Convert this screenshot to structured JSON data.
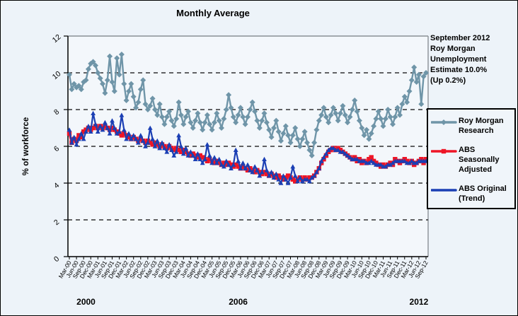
{
  "figure": {
    "background_color": "#edf3f9",
    "plot_background_color": "#f3f7fb",
    "border_color": "#000000"
  },
  "chart_data": {
    "type": "line",
    "title": "Monthly Average",
    "xlabel": "",
    "ylabel": "% of workforce",
    "ylim": [
      0,
      12
    ],
    "ytick_values": [
      0,
      2,
      4,
      6,
      8,
      10,
      12
    ],
    "grid": "horizontal dashed black lines at 2, 4, 6, 8, 10",
    "legend_position": "right",
    "x_frequency": "monthly",
    "x_range": "Mar-2000 to Sep-2012",
    "x_tick_labels": [
      "Mar-00",
      "Jun-00",
      "Sep-00",
      "Dec-00",
      "Mar-01",
      "Jun-01",
      "Sep-01",
      "Dec-01",
      "Mar-02",
      "Jun-02",
      "Sep-02",
      "Dec-02",
      "Mar-03",
      "Jun-03",
      "Sep-03",
      "Dec-03",
      "Mar-04",
      "Jun-04",
      "Sep-04",
      "Dec-04",
      "Mar-05",
      "Jun-05",
      "Sep-05",
      "Dec-05",
      "Mar-06",
      "Jun-06",
      "Sep-06",
      "Dec-06",
      "Mar-07",
      "Jun-07",
      "Sep-07",
      "Dec-07",
      "Mar-08",
      "Jun-08",
      "Sep-08",
      "Dec-08",
      "Mar-09",
      "Jun-09",
      "Sep-09",
      "Dec-09",
      "Mar-10",
      "Jun-10",
      "Sep-10",
      "Dec-10",
      "Mar-11",
      "Jun-11",
      "Sep-11",
      "Dec-11",
      "Mar-12",
      "Jun-12",
      "Sep-12"
    ],
    "year_labels": [
      {
        "label": "2000",
        "month_index": 7
      },
      {
        "label": "2006",
        "month_index": 71
      },
      {
        "label": "2012",
        "month_index": 147
      }
    ],
    "series": [
      {
        "name": "Roy Morgan Research",
        "color": "#6f95a8",
        "marker": "diamond",
        "values": [
          9.9,
          9.1,
          9.4,
          9.2,
          9.3,
          9.1,
          9.5,
          9.6,
          10.2,
          10.5,
          10.6,
          10.4,
          10.0,
          9.7,
          9.4,
          8.9,
          9.6,
          10.9,
          9.5,
          9.0,
          10.8,
          9.9,
          11.0,
          9.4,
          8.5,
          9.0,
          9.4,
          8.7,
          8.1,
          8.4,
          9.1,
          9.6,
          8.3,
          8.0,
          8.2,
          8.6,
          8.0,
          7.7,
          8.3,
          7.6,
          7.2,
          7.6,
          7.9,
          7.4,
          7.1,
          7.5,
          8.4,
          7.7,
          7.2,
          7.6,
          7.9,
          7.3,
          7.0,
          7.4,
          7.8,
          7.3,
          6.9,
          7.3,
          7.7,
          7.2,
          6.9,
          7.3,
          7.8,
          7.4,
          7.0,
          7.5,
          8.0,
          8.8,
          8.1,
          7.6,
          7.3,
          7.7,
          8.1,
          7.6,
          7.2,
          7.6,
          8.0,
          8.4,
          7.9,
          7.4,
          7.0,
          7.4,
          7.8,
          7.3,
          6.9,
          6.5,
          7.0,
          7.4,
          6.8,
          6.3,
          6.7,
          7.1,
          6.6,
          6.2,
          6.6,
          7.0,
          6.4,
          6.0,
          6.4,
          6.8,
          6.2,
          5.8,
          5.5,
          6.2,
          6.9,
          7.4,
          7.7,
          8.1,
          7.6,
          7.3,
          7.7,
          8.1,
          7.8,
          7.4,
          7.8,
          8.2,
          7.7,
          7.3,
          7.6,
          8.0,
          8.5,
          7.9,
          7.4,
          7.0,
          6.6,
          6.9,
          6.4,
          6.7,
          7.1,
          7.5,
          7.9,
          7.5,
          7.1,
          7.5,
          8.0,
          7.6,
          7.2,
          7.6,
          8.1,
          7.7,
          8.3,
          8.7,
          8.4,
          9.0,
          9.6,
          10.3,
          9.5,
          9.9,
          8.3,
          9.8,
          10.0
        ]
      },
      {
        "name": "ABS Seasonally Adjusted",
        "color": "#ee1526",
        "marker": "square",
        "values": [
          6.7,
          6.2,
          6.4,
          6.3,
          6.6,
          6.5,
          6.8,
          6.9,
          7.0,
          6.9,
          7.0,
          7.1,
          7.0,
          7.1,
          7.0,
          7.1,
          7.0,
          6.9,
          7.0,
          6.9,
          6.8,
          6.7,
          6.6,
          6.7,
          6.6,
          6.5,
          6.4,
          6.5,
          6.4,
          6.3,
          6.4,
          6.3,
          6.2,
          6.3,
          6.2,
          6.1,
          6.2,
          6.1,
          6.0,
          6.1,
          6.0,
          5.9,
          6.0,
          5.9,
          5.8,
          5.9,
          5.8,
          5.7,
          5.8,
          5.7,
          5.6,
          5.5,
          5.6,
          5.5,
          5.4,
          5.5,
          5.4,
          5.3,
          5.2,
          5.3,
          5.2,
          5.1,
          5.2,
          5.1,
          5.0,
          5.1,
          5.0,
          5.1,
          5.0,
          4.9,
          5.0,
          4.9,
          4.8,
          4.9,
          4.8,
          4.7,
          4.8,
          4.7,
          4.6,
          4.7,
          4.6,
          4.5,
          4.6,
          4.5,
          4.4,
          4.5,
          4.4,
          4.3,
          4.4,
          4.3,
          4.2,
          4.3,
          4.4,
          4.3,
          4.2,
          4.1,
          4.2,
          4.3,
          4.2,
          4.3,
          4.2,
          4.3,
          4.3,
          4.4,
          4.6,
          4.8,
          5.1,
          5.3,
          5.5,
          5.7,
          5.8,
          5.9,
          5.8,
          5.9,
          5.8,
          5.7,
          5.6,
          5.5,
          5.4,
          5.3,
          5.4,
          5.2,
          5.3,
          5.1,
          5.2,
          5.1,
          5.3,
          5.4,
          5.2,
          5.1,
          5.0,
          4.9,
          5.0,
          4.9,
          5.0,
          5.1,
          5.0,
          5.3,
          5.2,
          5.1,
          5.2,
          5.3,
          5.2,
          5.1,
          5.2,
          5.0,
          5.1,
          5.2,
          5.3,
          5.1,
          5.3
        ]
      },
      {
        "name": "ABS Original (Trend)",
        "color": "#1b3fb4",
        "marker": "triangle",
        "values": [
          6.9,
          6.2,
          6.5,
          6.1,
          6.4,
          6.7,
          6.4,
          6.8,
          7.1,
          6.8,
          7.8,
          7.2,
          6.8,
          7.1,
          6.9,
          7.3,
          7.0,
          6.7,
          7.4,
          7.0,
          6.7,
          6.8,
          7.7,
          6.9,
          6.4,
          6.7,
          6.4,
          6.6,
          6.4,
          6.2,
          6.6,
          6.3,
          6.0,
          6.2,
          7.0,
          6.4,
          6.0,
          6.3,
          5.9,
          6.2,
          5.9,
          5.7,
          6.1,
          5.8,
          5.5,
          5.7,
          6.6,
          6.0,
          5.6,
          5.9,
          5.5,
          5.7,
          5.5,
          5.3,
          5.6,
          5.3,
          5.1,
          5.3,
          6.1,
          5.5,
          5.1,
          5.4,
          5.1,
          5.3,
          5.0,
          4.9,
          5.2,
          5.0,
          4.8,
          5.0,
          5.8,
          5.2,
          4.8,
          5.1,
          4.8,
          5.0,
          4.7,
          4.6,
          4.9,
          4.7,
          4.4,
          4.6,
          5.3,
          4.7,
          4.4,
          4.6,
          4.3,
          4.5,
          4.2,
          4.0,
          4.4,
          4.2,
          4.0,
          4.3,
          4.9,
          4.4,
          4.1,
          4.3,
          4.1,
          4.2,
          4.2,
          4.1,
          4.3,
          4.4,
          4.6,
          4.8,
          5.2,
          5.4,
          5.6,
          5.8,
          5.9,
          5.9,
          5.8,
          5.8,
          5.7,
          5.7,
          5.6,
          5.5,
          5.4,
          5.3,
          5.3,
          5.3,
          5.2,
          5.2,
          5.2,
          5.1,
          5.1,
          5.2,
          5.1,
          5.0,
          5.0,
          5.0,
          4.9,
          4.9,
          5.0,
          5.0,
          5.1,
          5.2,
          5.2,
          5.2,
          5.2,
          5.2,
          5.1,
          5.1,
          5.2,
          5.1,
          5.1,
          5.2,
          5.2,
          5.2,
          5.2
        ]
      }
    ]
  },
  "annotation": {
    "text": "September 2012\nRoy Morgan\nUnemployment\nEstimate 10.0%\n(Up 0.2%)"
  },
  "legend": {
    "items": [
      {
        "label": "Roy Morgan\nResearch",
        "show_marker": true
      },
      {
        "label": "ABS Seasonally\nAdjusted",
        "show_marker": true
      },
      {
        "label": "ABS Original\n(Trend)",
        "show_marker": false
      }
    ]
  }
}
